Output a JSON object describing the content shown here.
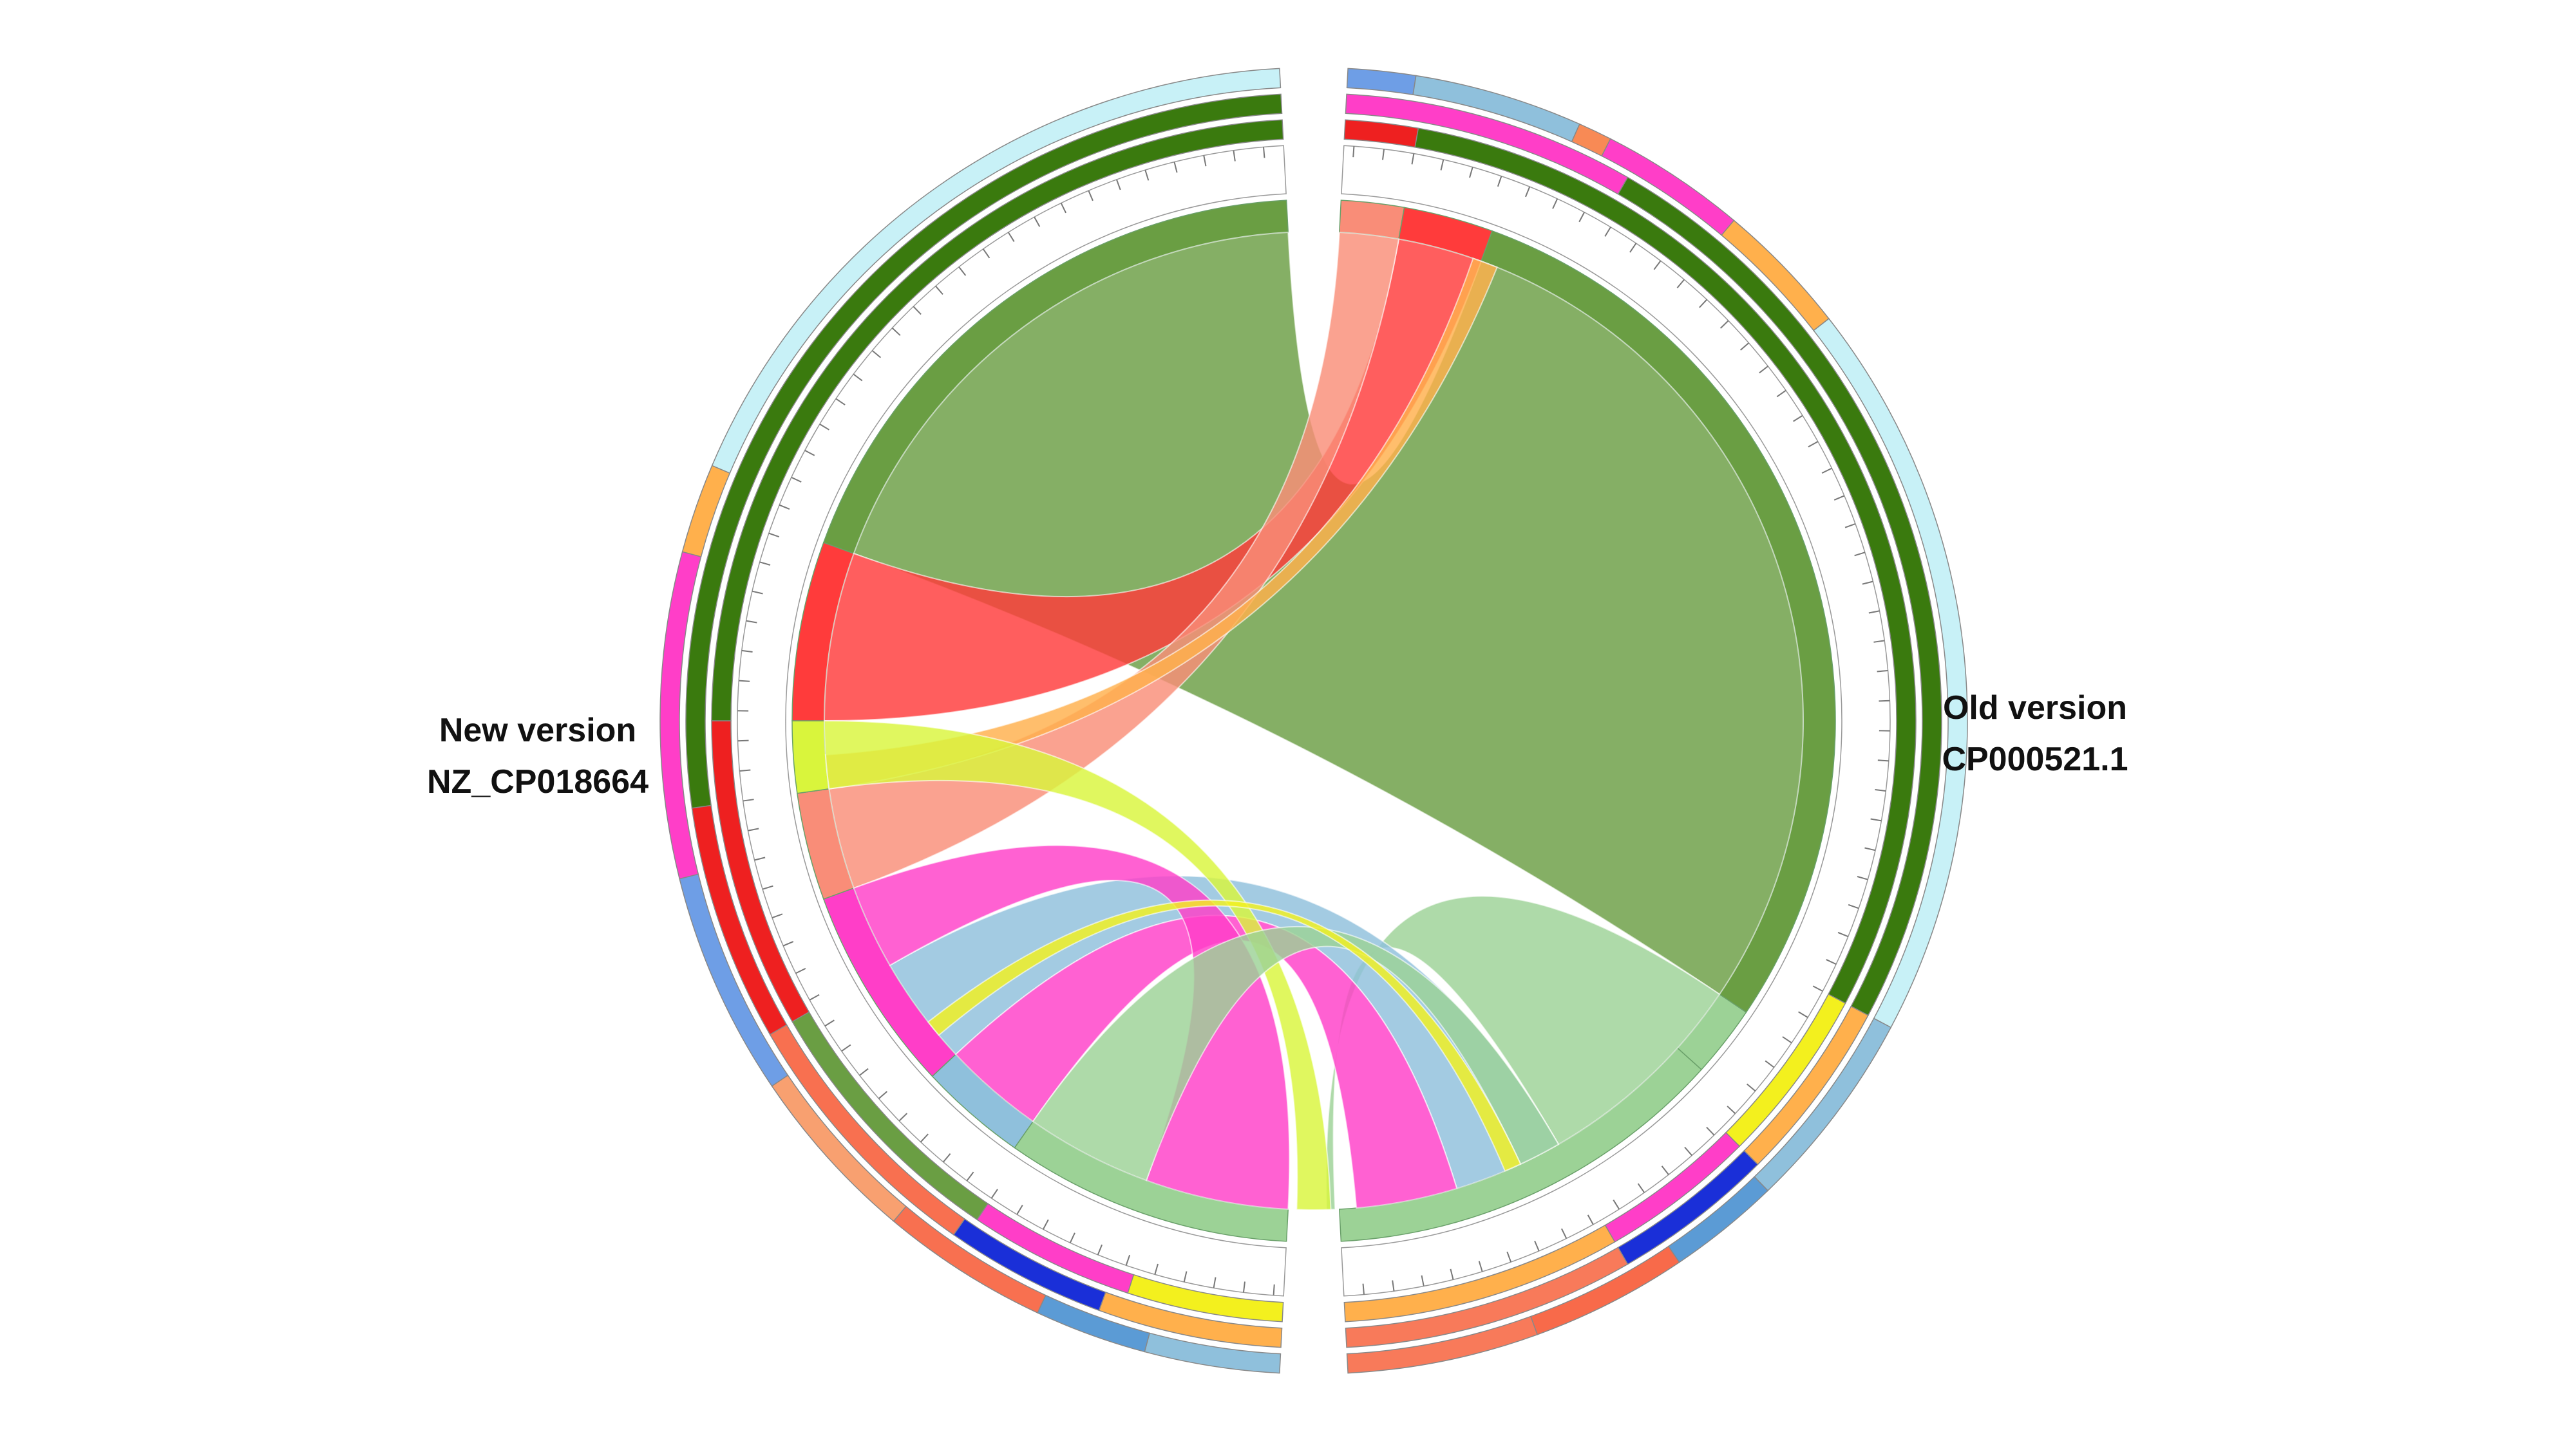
{
  "labels": {
    "left": {
      "line1": "New version",
      "line2": "NZ_CP018664"
    },
    "right": {
      "line1": "Old version",
      "line2": "CP000521.1"
    }
  },
  "colors": {
    "green": "#6a9e43",
    "light_green": "#9cd296",
    "red": "#ff3b3b",
    "salmon": "#f98d78",
    "orange": "#ffb04c",
    "yellow_green": "#d9f53c",
    "magenta": "#ff3ec8",
    "light_blue": "#8fc0dc",
    "yellow": "#f3f01e",
    "dark_green_ring": "#3a7a0e",
    "cyan_ring": "#c8f1f7"
  }
}
